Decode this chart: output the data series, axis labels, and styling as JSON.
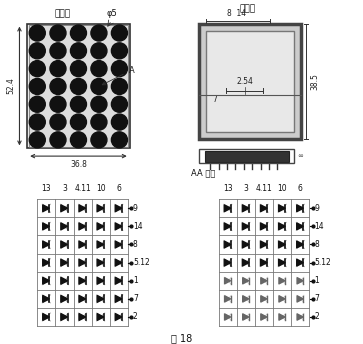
{
  "title": "图 18",
  "front_view_title": "正极图",
  "back_view_title": "背视图",
  "section_title": "AA 剖视",
  "front_dim_width": "36.8",
  "front_dim_height": "52.4",
  "front_dia": "φ5",
  "back_dim_height": "38.5",
  "back_dim_254": "2.54",
  "back_dim_7": "7",
  "back_dim_8_14": "8  14",
  "grid_rows": 7,
  "grid_cols": 5,
  "col_labels": [
    "13",
    "3",
    "4.11",
    "10",
    "6"
  ],
  "row_labels": [
    "9",
    "14",
    "8",
    "5.12",
    "1",
    "7",
    "2"
  ],
  "bg_color": "#ffffff",
  "dark_color": "#111111",
  "gray_color": "#aaaaaa",
  "grid_color": "#777777",
  "front_circle_rows": 7,
  "front_circle_cols": 5
}
